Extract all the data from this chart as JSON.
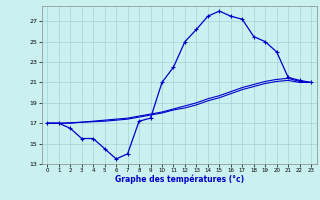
{
  "xlabel": "Graphe des températures (°c)",
  "bg_color": "#caf0f0",
  "line_color": "#0000cc",
  "ylim": [
    13,
    28.5
  ],
  "xlim": [
    -0.5,
    23.5
  ],
  "yticks": [
    13,
    15,
    17,
    19,
    21,
    23,
    25,
    27
  ],
  "xticks": [
    0,
    1,
    2,
    3,
    4,
    5,
    6,
    7,
    8,
    9,
    10,
    11,
    12,
    13,
    14,
    15,
    16,
    17,
    18,
    19,
    20,
    21,
    22,
    23
  ],
  "line1_x": [
    0,
    1,
    2,
    3,
    4,
    5,
    6,
    7,
    8,
    9,
    10,
    11,
    12,
    13,
    14,
    15,
    16,
    17,
    18,
    19,
    20,
    21,
    22,
    23
  ],
  "line1_y": [
    17.0,
    17.0,
    16.5,
    15.5,
    15.5,
    14.5,
    13.5,
    14.0,
    17.2,
    17.5,
    21.0,
    22.5,
    25.0,
    26.2,
    27.5,
    28.0,
    27.5,
    27.2,
    25.5,
    25.0,
    24.0,
    21.5,
    21.2,
    21.0
  ],
  "line2_x": [
    0,
    1,
    2,
    3,
    4,
    5,
    6,
    7,
    8,
    9,
    10,
    11,
    12,
    13,
    14,
    15,
    16,
    17,
    18,
    19,
    20,
    21,
    22,
    23
  ],
  "line2_y": [
    17.0,
    17.0,
    17.0,
    17.1,
    17.2,
    17.3,
    17.4,
    17.5,
    17.7,
    17.9,
    18.1,
    18.4,
    18.7,
    19.0,
    19.4,
    19.7,
    20.1,
    20.5,
    20.8,
    21.1,
    21.3,
    21.4,
    21.1,
    21.0
  ],
  "line3_x": [
    0,
    1,
    2,
    3,
    4,
    5,
    6,
    7,
    8,
    9,
    10,
    11,
    12,
    13,
    14,
    15,
    16,
    17,
    18,
    19,
    20,
    21,
    22,
    23
  ],
  "line3_y": [
    17.0,
    17.0,
    17.05,
    17.1,
    17.15,
    17.2,
    17.3,
    17.4,
    17.6,
    17.8,
    18.0,
    18.3,
    18.5,
    18.8,
    19.2,
    19.5,
    19.9,
    20.3,
    20.6,
    20.9,
    21.1,
    21.2,
    21.0,
    21.0
  ]
}
